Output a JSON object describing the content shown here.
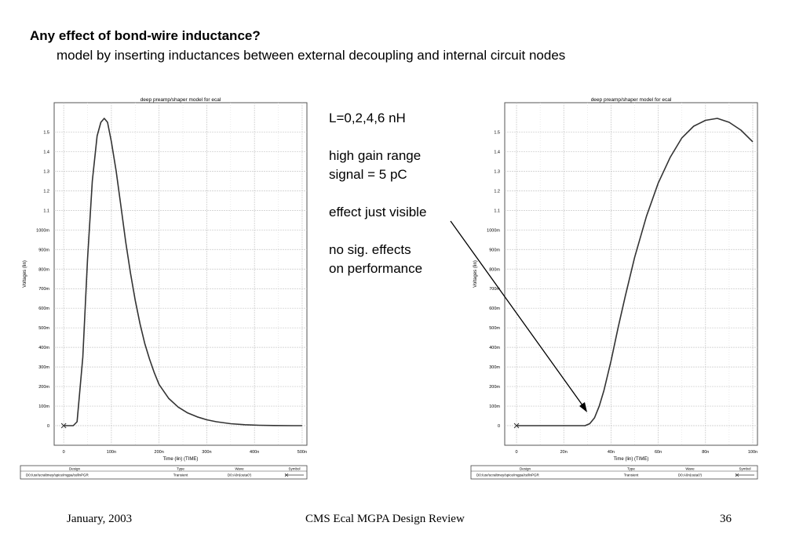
{
  "slide": {
    "title": "Any effect of bond-wire inductance?",
    "subtitle": "model by inserting inductances between external decoupling and internal circuit nodes",
    "footer": {
      "date": "January, 2003",
      "center": "CMS Ecal MGPA Design Review",
      "page": "36"
    }
  },
  "notes": {
    "line1": "L=0,2,4,6 nH",
    "line2": "high gain range",
    "line3": "signal = 5 pC",
    "line4": "effect just visible",
    "line5": "no sig. effects",
    "line6": "on performance"
  },
  "chart_data": [
    {
      "type": "line",
      "title": "deep preamp/shaper model for ecal",
      "xlabel": "Time (lin) (TIME)",
      "ylabel": "Voltages (lin)",
      "xlim": [
        -20,
        510
      ],
      "ylim": [
        -0.1,
        1.65
      ],
      "grid": true,
      "x_ticks": [
        0,
        100,
        200,
        300,
        400,
        500
      ],
      "x_tick_labels": [
        "0",
        "100n",
        "200n",
        "300n",
        "400n",
        "500n"
      ],
      "y_ticks": [
        0,
        0.1,
        0.2,
        0.3,
        0.4,
        0.5,
        0.6,
        0.7,
        0.8,
        0.9,
        1.0,
        1.1,
        1.2,
        1.3,
        1.4,
        1.5
      ],
      "y_tick_labels": [
        "0",
        "100m",
        "200m",
        "300m",
        "400m",
        "500m",
        "600m",
        "700m",
        "800m",
        "900m",
        "1000m",
        "1.1",
        "1.2",
        "1.3",
        "1.4",
        "1.5"
      ],
      "legend": {
        "headers": [
          "Design",
          "Type",
          "Wave",
          "Symbol"
        ],
        "row": [
          "D0:/usr/ucraltmey/spice/mgpa/cellnPGR",
          "Transient",
          "D0:A0n(outa0')"
        ]
      },
      "series": [
        {
          "x": [
            0,
            20,
            28,
            40,
            50,
            60,
            70,
            78,
            85,
            92,
            100,
            110,
            120,
            130,
            140,
            150,
            160,
            170,
            180,
            190,
            200,
            220,
            240,
            260,
            280,
            300,
            320,
            350,
            380,
            410,
            440,
            480,
            500
          ],
          "y": [
            0,
            0,
            0.02,
            0.35,
            0.85,
            1.25,
            1.48,
            1.55,
            1.57,
            1.55,
            1.45,
            1.3,
            1.12,
            0.94,
            0.78,
            0.64,
            0.52,
            0.42,
            0.34,
            0.27,
            0.21,
            0.14,
            0.095,
            0.065,
            0.045,
            0.03,
            0.02,
            0.01,
            0.005,
            0.002,
            0.001,
            0.0,
            0.0
          ]
        }
      ]
    },
    {
      "type": "line",
      "title": "deep preamp/shaper model for ecal",
      "xlabel": "Time (lin) (TIME)",
      "ylabel": "Voltages (lin)",
      "xlim": [
        -5,
        102
      ],
      "ylim": [
        -0.1,
        1.65
      ],
      "grid": true,
      "x_ticks": [
        0,
        20,
        40,
        60,
        80,
        100
      ],
      "x_tick_labels": [
        "0",
        "20n",
        "40n",
        "60n",
        "80n",
        "100n"
      ],
      "y_ticks": [
        0,
        0.1,
        0.2,
        0.3,
        0.4,
        0.5,
        0.6,
        0.7,
        0.8,
        0.9,
        1.0,
        1.1,
        1.2,
        1.3,
        1.4,
        1.5
      ],
      "y_tick_labels": [
        "0",
        "100m",
        "200m",
        "300m",
        "400m",
        "500m",
        "600m",
        "700m",
        "800m",
        "900m",
        "1000m",
        "1.1",
        "1.2",
        "1.3",
        "1.4",
        "1.5"
      ],
      "legend": {
        "headers": [
          "Design",
          "Type",
          "Wave",
          "Symbol"
        ],
        "row": [
          "D0:/usr/ucraltmey/spice/mgpa/cellnPGR",
          "Transient",
          "D0:A0n(outa0')"
        ]
      },
      "series": [
        {
          "x": [
            0,
            10,
            20,
            29,
            31,
            33,
            35,
            37,
            40,
            43,
            46,
            50,
            55,
            60,
            65,
            70,
            75,
            80,
            85,
            90,
            95,
            100
          ],
          "y": [
            0,
            0,
            0,
            0,
            0.01,
            0.04,
            0.1,
            0.18,
            0.33,
            0.5,
            0.66,
            0.86,
            1.07,
            1.24,
            1.37,
            1.47,
            1.53,
            1.56,
            1.57,
            1.55,
            1.51,
            1.45
          ]
        }
      ]
    }
  ]
}
